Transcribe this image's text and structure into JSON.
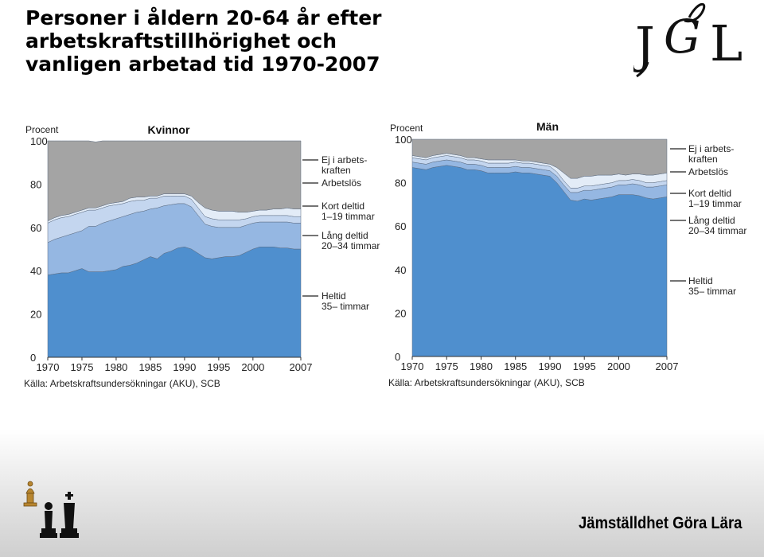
{
  "page": {
    "title_line1": "Personer i åldern 20-64 år efter arbetskraftstillhörighet och",
    "title_line2": "vanligen arbetad tid 1970-2007",
    "logo_text": "J&L",
    "footer_brand": "Jämställdhet Göra Lära"
  },
  "colors": {
    "heltid": "#4f8fce",
    "lang_deltid": "#95b7e2",
    "kort_deltid": "#c4d6ef",
    "arbetslos": "#e3ecf7",
    "ej_i_arbetskraften": "#a4a4a4"
  },
  "chart_data": [
    {
      "type": "area",
      "stacked": true,
      "title": "Kvinnor",
      "ylabel": "Procent",
      "ylim": [
        0,
        100
      ],
      "yticks": [
        "0",
        "20",
        "40",
        "60",
        "80",
        "100"
      ],
      "xlim": [
        1970,
        2007
      ],
      "xticks": [
        "1970",
        "1975",
        "1980",
        "1985",
        "1990",
        "1995",
        "2000",
        "2007"
      ],
      "source": "Källa: Arbetskraftsundersökningar (AKU), SCB",
      "x": [
        1970,
        1971,
        1972,
        1973,
        1974,
        1975,
        1976,
        1977,
        1978,
        1979,
        1980,
        1981,
        1982,
        1983,
        1984,
        1985,
        1986,
        1987,
        1988,
        1989,
        1990,
        1991,
        1992,
        1993,
        1994,
        1995,
        1996,
        1997,
        1998,
        1999,
        2000,
        2001,
        2002,
        2003,
        2004,
        2005,
        2006,
        2007
      ],
      "series": [
        {
          "name": "Heltid 35– timmar",
          "color_key": "heltid",
          "values": [
            38,
            38.5,
            39,
            39,
            40,
            41,
            39.5,
            39.5,
            39.5,
            40,
            40.5,
            42,
            42.5,
            43.5,
            45,
            46.5,
            45.5,
            48,
            49,
            50.5,
            51,
            50,
            48,
            46,
            45.5,
            46,
            46.5,
            46.5,
            47,
            48.5,
            50,
            51,
            51,
            51,
            50.5,
            50.5,
            50,
            50
          ]
        },
        {
          "name": "Lång deltid 20–34 timmar",
          "color_key": "lang_deltid",
          "values": [
            15,
            16,
            16.5,
            17.5,
            17.5,
            17.5,
            21,
            21,
            22.5,
            23,
            23.5,
            23,
            23.5,
            23.5,
            22.5,
            22,
            23.5,
            22,
            21.5,
            20.5,
            20,
            19.5,
            17.5,
            15.5,
            15,
            14,
            13.5,
            13.5,
            13,
            12.5,
            12,
            11.5,
            11.5,
            11.5,
            12,
            12,
            12,
            12
          ]
        },
        {
          "name": "Kort deltid 1–19 timmar",
          "color_key": "kort_deltid",
          "values": [
            9,
            9,
            9,
            8.5,
            8.5,
            8.5,
            7.5,
            7.5,
            7,
            7,
            6.5,
            6,
            6,
            5.5,
            5,
            5,
            4.5,
            4.5,
            4,
            3.5,
            3.5,
            3.5,
            3.5,
            3.5,
            3.5,
            3.5,
            3.5,
            3.5,
            3.5,
            3,
            3,
            3,
            3,
            3,
            3,
            3,
            3,
            3
          ]
        },
        {
          "name": "Arbetslös",
          "color_key": "arbetslos",
          "values": [
            1,
            1,
            1,
            1,
            1,
            1,
            1,
            1,
            1,
            1,
            1,
            1,
            1.5,
            1.5,
            1.5,
            1,
            1,
            1,
            1,
            1,
            1,
            1.5,
            2.5,
            4,
            4,
            4,
            4,
            4,
            3.5,
            3,
            2.5,
            2.5,
            2.5,
            3,
            3,
            3.5,
            3.5,
            3.5
          ]
        },
        {
          "name": "Ej i arbetskraften",
          "color_key": "ej_i_arbetskraften",
          "values": [
            37,
            35.5,
            34.5,
            34,
            33,
            32,
            31,
            30.5,
            30,
            29,
            28.5,
            28,
            26.5,
            26,
            26,
            25.5,
            25.5,
            24.5,
            24.5,
            24.5,
            24.5,
            25.5,
            28.5,
            31,
            32,
            32.5,
            32.5,
            32.5,
            33,
            33,
            32.5,
            32,
            32,
            31.5,
            31.5,
            31,
            31.5,
            31.5
          ]
        }
      ],
      "legend": [
        {
          "key": "ej_i_arbetskraften",
          "lines": [
            "Ej i arbets-",
            "kraften"
          ]
        },
        {
          "key": "arbetslos",
          "lines": [
            "Arbetslös"
          ]
        },
        {
          "key": "kort_deltid",
          "lines": [
            "Kort deltid",
            "1–19 timmar"
          ]
        },
        {
          "key": "lang_deltid",
          "lines": [
            "Lång deltid",
            "20–34 timmar"
          ]
        },
        {
          "key": "heltid",
          "lines": [
            "Heltid",
            "35– timmar"
          ]
        }
      ]
    },
    {
      "type": "area",
      "stacked": true,
      "title": "Män",
      "ylabel": "Procent",
      "ylim": [
        0,
        100
      ],
      "yticks": [
        "0",
        "20",
        "40",
        "60",
        "80",
        "100"
      ],
      "xlim": [
        1970,
        2007
      ],
      "xticks": [
        "1970",
        "1975",
        "1980",
        "1985",
        "1990",
        "1995",
        "2000",
        "2007"
      ],
      "source": "Källa: Arbetskraftsundersökningar (AKU), SCB",
      "x": [
        1970,
        1971,
        1972,
        1973,
        1974,
        1975,
        1976,
        1977,
        1978,
        1979,
        1980,
        1981,
        1982,
        1983,
        1984,
        1985,
        1986,
        1987,
        1988,
        1989,
        1990,
        1991,
        1992,
        1993,
        1994,
        1995,
        1996,
        1997,
        1998,
        1999,
        2000,
        2001,
        2002,
        2003,
        2004,
        2005,
        2006,
        2007
      ],
      "series": [
        {
          "name": "Heltid 35– timmar",
          "color_key": "heltid",
          "values": [
            87,
            86.5,
            86,
            87,
            87.5,
            88,
            87.5,
            87,
            86,
            86,
            85.5,
            84.5,
            84.5,
            84.5,
            84.5,
            85,
            84.5,
            84.5,
            84,
            83.5,
            83,
            80,
            76,
            72,
            71.5,
            72.5,
            72,
            72.5,
            73,
            73.5,
            74.5,
            74.5,
            74.5,
            74,
            73,
            72.5,
            73,
            73.5
          ]
        },
        {
          "name": "Lång deltid 20–34 timmar",
          "color_key": "lang_deltid",
          "values": [
            2.5,
            2.5,
            2.5,
            2.5,
            2.5,
            2.5,
            2.5,
            2.5,
            2.5,
            2.5,
            2.5,
            2.5,
            2.5,
            2.5,
            2.5,
            2.5,
            2.5,
            2.5,
            2.5,
            2.5,
            2.5,
            3,
            3,
            3.5,
            4,
            4,
            4.5,
            4.5,
            4.5,
            4.5,
            4.5,
            4.5,
            5,
            5,
            5,
            5.5,
            5.5,
            5.5
          ]
        },
        {
          "name": "Kort deltid 1–19 timmar",
          "color_key": "kort_deltid",
          "values": [
            2,
            2,
            2,
            2,
            2,
            2,
            2,
            2,
            2,
            2,
            2,
            2,
            2,
            2,
            2,
            2,
            2,
            2,
            2,
            2,
            2,
            2,
            2,
            2,
            2,
            2,
            2,
            2,
            2,
            2,
            2,
            2,
            2,
            2,
            2,
            2,
            2,
            2
          ]
        },
        {
          "name": "Arbetslös",
          "color_key": "arbetslos",
          "values": [
            1,
            1,
            1,
            1,
            1,
            1,
            1,
            1,
            1,
            1,
            1,
            1.5,
            1.5,
            1.5,
            1.5,
            1,
            1,
            1,
            1,
            1,
            1,
            2,
            3.5,
            4.5,
            4.5,
            4.5,
            4.5,
            4.5,
            4,
            3.5,
            3,
            2.5,
            2.5,
            3,
            3.5,
            3.5,
            3.5,
            3.5
          ]
        },
        {
          "name": "Ej i arbetskraften",
          "color_key": "ej_i_arbetskraften",
          "values": [
            7.5,
            8,
            8.5,
            7.5,
            7,
            6.5,
            7,
            7.5,
            8.5,
            8.5,
            9,
            9.5,
            9.5,
            9.5,
            9.5,
            9.5,
            10,
            10,
            10.5,
            11,
            11.5,
            13,
            15.5,
            18,
            18,
            17,
            17,
            16.5,
            16.5,
            16.5,
            16,
            16.5,
            16,
            16,
            16.5,
            16.5,
            16,
            15.5
          ]
        }
      ],
      "legend": [
        {
          "key": "ej_i_arbetskraften",
          "lines": [
            "Ej i arbets-",
            "kraften"
          ]
        },
        {
          "key": "arbetslos",
          "lines": [
            "Arbetslös"
          ]
        },
        {
          "key": "kort_deltid",
          "lines": [
            "Kort deltid",
            "1–19 timmar"
          ]
        },
        {
          "key": "lang_deltid",
          "lines": [
            "Lång deltid",
            "20–34 timmar"
          ]
        },
        {
          "key": "heltid",
          "lines": [
            "Heltid",
            "35– timmar"
          ]
        }
      ]
    }
  ]
}
